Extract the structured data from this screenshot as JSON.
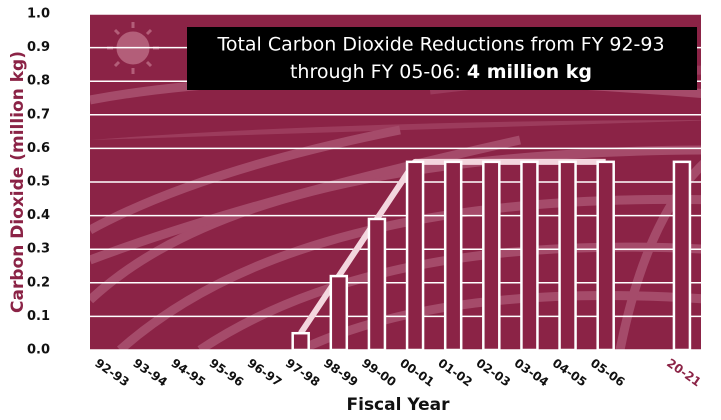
{
  "chart_data": {
    "type": "bar",
    "title_lines": [
      "Total Carbon Dioxide Reductions from FY 92-93",
      "through FY 05-06:"
    ],
    "title_highlight": "4 million kg",
    "y_label": "Carbon Dioxide (million kg)",
    "x_label": "Fiscal Year",
    "categories": [
      "92-93",
      "93-94",
      "94-95",
      "95-96",
      "96-97",
      "97-98",
      "98-99",
      "99-00",
      "00-01",
      "01-02",
      "02-03",
      "03-04",
      "04-05",
      "05-06",
      null,
      "20-21"
    ],
    "values": [
      null,
      null,
      null,
      null,
      null,
      0.05,
      0.22,
      0.39,
      0.56,
      0.56,
      0.56,
      0.56,
      0.56,
      0.56,
      null,
      0.56
    ],
    "color": "#8b2346",
    "ylim": [
      0,
      1.0
    ],
    "yticks": [
      {
        "value": 0,
        "label": "0.0"
      },
      0.1,
      0.2,
      0.3,
      0.4,
      0.5,
      0.6,
      0.7,
      0.8,
      0.9,
      {
        "value": 1,
        "label": "1.0"
      }
    ],
    "grid": true
  }
}
